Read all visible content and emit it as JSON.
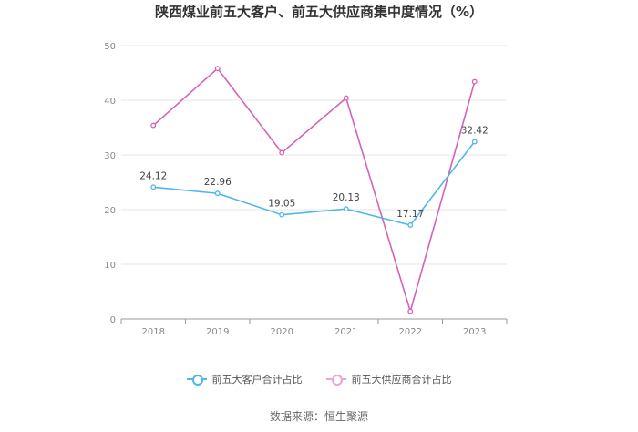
{
  "chart_data": {
    "type": "line",
    "title": "陕西煤业前五大客户、前五大供应商集中度情况（%）",
    "categories": [
      "2018",
      "2019",
      "2020",
      "2021",
      "2022",
      "2023"
    ],
    "series": [
      {
        "name": "前五大客户合计占比",
        "color": "#4fb7e8",
        "values": [
          24.12,
          22.96,
          19.05,
          20.13,
          17.17,
          32.42
        ],
        "data_labels": [
          "24.12",
          "22.96",
          "19.05",
          "20.13",
          "17.17",
          "32.42"
        ]
      },
      {
        "name": "前五大供应商合计占比",
        "color": "#d662b6",
        "values": [
          35.4,
          45.8,
          30.4,
          40.4,
          1.4,
          43.4
        ]
      }
    ],
    "y_ticks": [
      "0",
      "10",
      "20",
      "30",
      "40",
      "50"
    ],
    "ylim": [
      0,
      50
    ],
    "grid": true,
    "legend_position": "bottom"
  },
  "source": "数据来源：恒生聚源"
}
